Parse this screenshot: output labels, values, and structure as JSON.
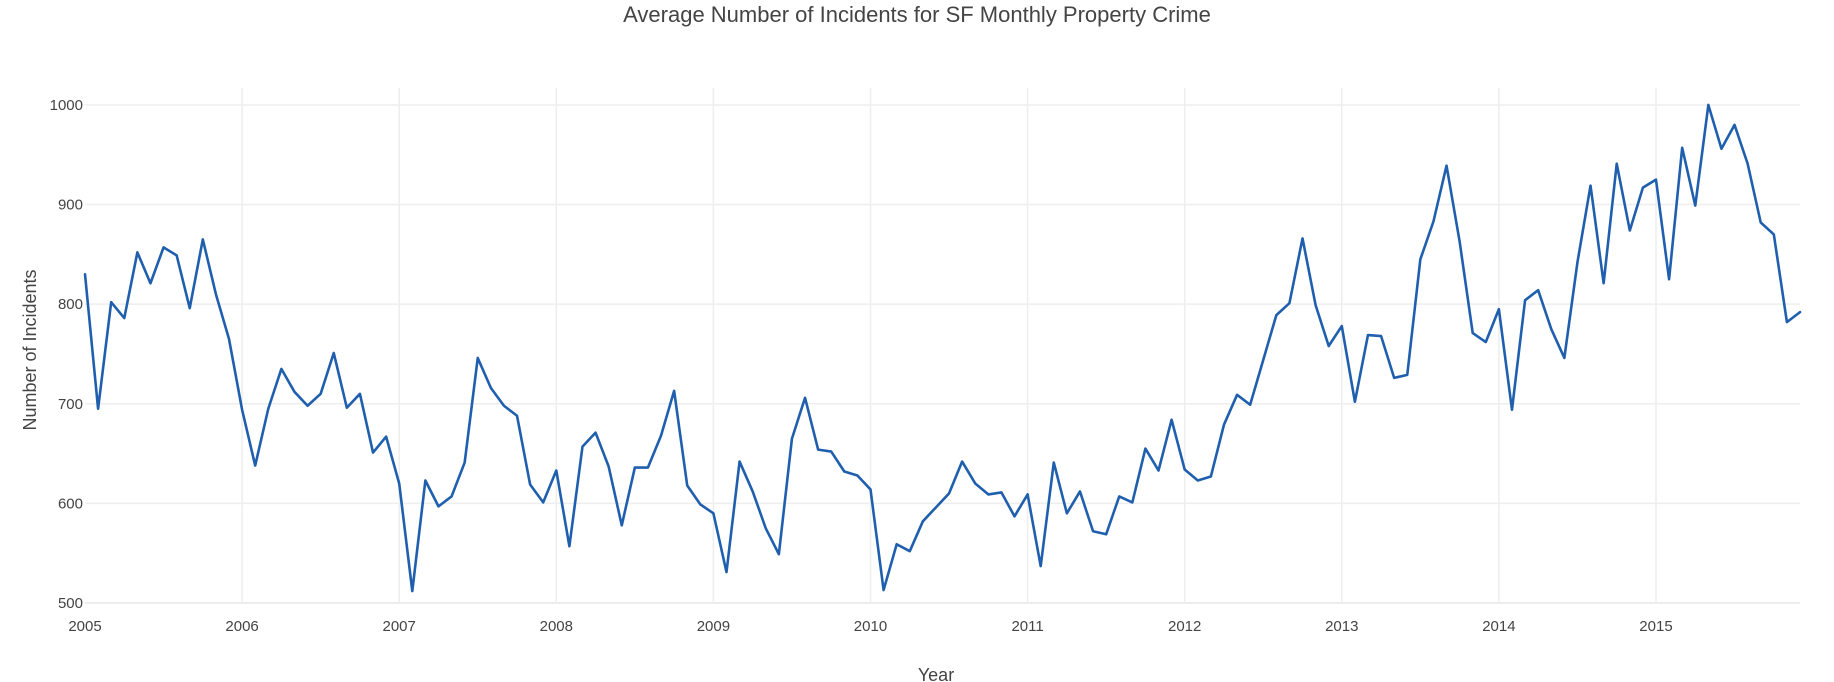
{
  "chart_data": {
    "type": "line",
    "title": "Average Number of Incidents for SF Monthly Property Crime",
    "xlabel": "Year",
    "ylabel": "Number of Incidents",
    "x_start": "2005-01",
    "x_step": "month",
    "xlim": [
      "2005-01",
      "2015-12"
    ],
    "ylim": [
      500,
      1000
    ],
    "x_ticks": [
      "2005",
      "2006",
      "2007",
      "2008",
      "2009",
      "2010",
      "2011",
      "2012",
      "2013",
      "2014",
      "2015"
    ],
    "y_ticks": [
      "500",
      "600",
      "700",
      "800",
      "900",
      "1000"
    ],
    "grid": true,
    "legend": "none",
    "series": [
      {
        "color": "#1f5fae",
        "values": [
          830,
          695,
          802,
          786,
          852,
          821,
          857,
          849,
          796,
          865,
          810,
          765,
          694,
          638,
          695,
          735,
          712,
          698,
          710,
          751,
          696,
          710,
          651,
          667,
          620,
          512,
          623,
          597,
          607,
          641,
          746,
          716,
          698,
          688,
          619,
          601,
          633,
          557,
          657,
          671,
          637,
          578,
          636,
          636,
          668,
          713,
          618,
          599,
          590,
          531,
          642,
          612,
          575,
          549,
          665,
          706,
          654,
          652,
          632,
          628,
          614,
          513,
          559,
          552,
          582,
          596,
          610,
          642,
          620,
          609,
          611,
          587,
          609,
          537,
          641,
          590,
          612,
          572,
          569,
          607,
          601,
          655,
          633,
          684,
          634,
          623,
          627,
          679,
          709,
          699,
          744,
          789,
          801,
          866,
          799,
          758,
          778,
          702,
          769,
          768,
          726,
          729,
          845,
          883,
          939,
          863,
          771,
          762,
          795,
          694,
          804,
          814,
          775,
          746,
          842,
          919,
          821,
          941,
          874,
          917,
          925,
          825,
          957,
          899,
          1000,
          956,
          980,
          941,
          882,
          870,
          782,
          792
        ]
      }
    ]
  }
}
